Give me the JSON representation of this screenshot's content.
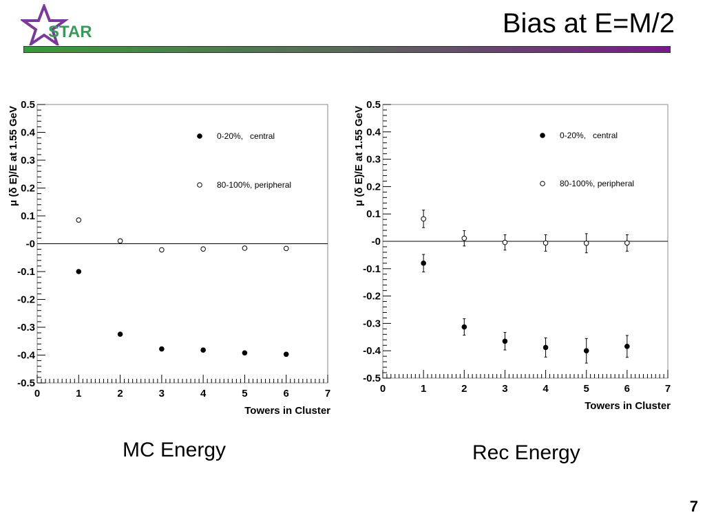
{
  "slide": {
    "title": "Bias at E=M/2",
    "page_number": "7",
    "logo_text": "STAR",
    "colors": {
      "bar_start": "#3a9a3a",
      "bar_end": "#7a1a8a",
      "logo_star": "#7a3a9a",
      "logo_text": "#3a9a5a"
    }
  },
  "chart_data": [
    {
      "type": "scatter",
      "caption": "MC Energy",
      "xlabel": "Towers in Cluster",
      "ylabel": "μ (δ E)/E at 1.55 GeV",
      "xlim": [
        0,
        7
      ],
      "ylim": [
        -0.5,
        0.5
      ],
      "x_ticks": [
        "0",
        "1",
        "2",
        "3",
        "4",
        "5",
        "6",
        "7"
      ],
      "y_ticks": [
        "0.5",
        "0.4",
        "0.3",
        "0.2",
        "0.1",
        "-0",
        "-0.1",
        "-0.2",
        "-0.3",
        "-0.4",
        "-0.5"
      ],
      "zero_line": true,
      "legend": [
        "0-20%,   central",
        "80-100%, peripheral"
      ],
      "series": [
        {
          "name": "0-20%,   central",
          "marker": "filled",
          "x": [
            1,
            2,
            3,
            4,
            5,
            6
          ],
          "y": [
            -0.1,
            -0.325,
            -0.378,
            -0.382,
            -0.392,
            -0.397
          ]
        },
        {
          "name": "80-100%, peripheral",
          "marker": "open",
          "x": [
            1,
            2,
            3,
            4,
            5,
            6
          ],
          "y": [
            0.085,
            0.01,
            -0.022,
            -0.019,
            -0.016,
            -0.017
          ]
        }
      ]
    },
    {
      "type": "scatter",
      "caption": "Rec Energy",
      "xlabel": "Towers in Cluster",
      "ylabel": "μ (δ E)/E at 1.55 GeV",
      "xlim": [
        0,
        7
      ],
      "ylim": [
        -0.5,
        0.5
      ],
      "x_ticks": [
        "0",
        "1",
        "2",
        "3",
        "4",
        "5",
        "6",
        "7"
      ],
      "y_ticks": [
        "0.5",
        "0.4",
        "0.3",
        "0.2",
        "0.1",
        "-0",
        "-0.1",
        "-0.2",
        "-0.3",
        "-0.4",
        "-0.5"
      ],
      "zero_line": true,
      "legend": [
        "0-20%,   central",
        "80-100%, peripheral"
      ],
      "series": [
        {
          "name": "0-20%,   central",
          "marker": "filled",
          "x": [
            1,
            2,
            3,
            4,
            5,
            6
          ],
          "y": [
            -0.08,
            -0.313,
            -0.365,
            -0.388,
            -0.4,
            -0.384
          ],
          "err": [
            0.032,
            0.03,
            0.032,
            0.035,
            0.045,
            0.04
          ]
        },
        {
          "name": "80-100%, peripheral",
          "marker": "open",
          "x": [
            1,
            2,
            3,
            4,
            5,
            6
          ],
          "y": [
            0.082,
            0.011,
            -0.004,
            -0.006,
            -0.007,
            -0.006
          ],
          "err": [
            0.032,
            0.028,
            0.028,
            0.03,
            0.035,
            0.03
          ]
        }
      ]
    }
  ]
}
